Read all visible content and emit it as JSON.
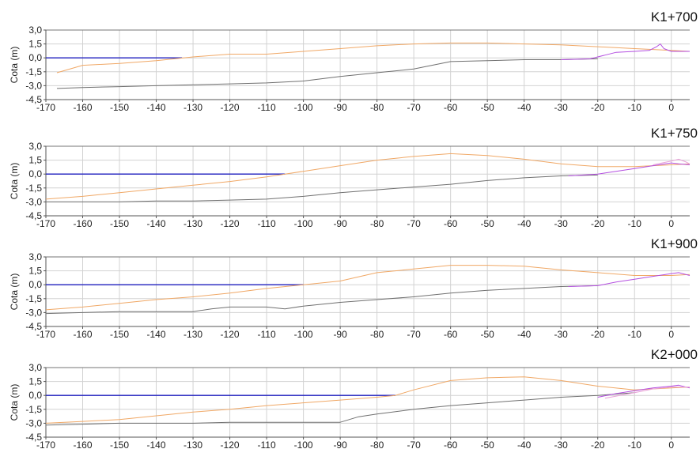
{
  "colors": {
    "grid": "#d2d2d2",
    "frame": "#555555",
    "sea_level": "#1f1fbf",
    "profile_orange": "#f0a866",
    "profile_gray": "#707070",
    "profile_purple": "#b44fe0",
    "profile_pink": "#e8a0d8"
  },
  "chart_data": [
    {
      "type": "line",
      "title": "K1+700",
      "ylabel": "Cota (m)",
      "xlim": [
        -170,
        5
      ],
      "ylim": [
        -4.5,
        3.0
      ],
      "xticks": [
        -170,
        -160,
        -150,
        -140,
        -130,
        -120,
        -110,
        -100,
        -90,
        -80,
        -70,
        -60,
        -50,
        -40,
        -30,
        -20,
        -10,
        0
      ],
      "yticks": [
        "3,0",
        "1,5",
        "0,0",
        "-1,5",
        "-3,0",
        "-4,5"
      ],
      "ytick_values": [
        3.0,
        1.5,
        0.0,
        -1.5,
        -3.0,
        -4.5
      ],
      "grid": true,
      "series": [
        {
          "color_key": "sea_level",
          "x": [
            -170,
            -133
          ],
          "y": [
            0.0,
            0.0
          ]
        },
        {
          "color_key": "profile_orange",
          "x": [
            -167,
            -160,
            -150,
            -140,
            -130,
            -120,
            -110,
            -100,
            -90,
            -80,
            -70,
            -60,
            -50,
            -40,
            -30,
            -20,
            -10,
            0,
            5
          ],
          "y": [
            -1.6,
            -0.8,
            -0.6,
            -0.3,
            0.1,
            0.4,
            0.4,
            0.7,
            1.0,
            1.3,
            1.5,
            1.6,
            1.6,
            1.5,
            1.4,
            1.2,
            1.0,
            0.8,
            0.7
          ]
        },
        {
          "color_key": "profile_gray",
          "x": [
            -167,
            -160,
            -150,
            -140,
            -130,
            -120,
            -110,
            -100,
            -90,
            -80,
            -70,
            -60,
            -50,
            -40,
            -30,
            -20
          ],
          "y": [
            -3.3,
            -3.2,
            -3.1,
            -3.0,
            -2.9,
            -2.8,
            -2.7,
            -2.5,
            -2.0,
            -1.6,
            -1.2,
            -0.4,
            -0.3,
            -0.2,
            -0.2,
            -0.1
          ]
        },
        {
          "color_key": "profile_purple",
          "x": [
            -30,
            -22,
            -20,
            -18,
            -15,
            -10,
            -6,
            -4,
            -3,
            -2,
            0,
            5
          ],
          "y": [
            -0.2,
            -0.1,
            0.1,
            0.3,
            0.6,
            0.7,
            0.8,
            1.2,
            1.5,
            1.0,
            0.7,
            0.7
          ]
        }
      ]
    },
    {
      "type": "line",
      "title": "K1+750",
      "ylabel": "Cota (m)",
      "xlim": [
        -170,
        5
      ],
      "ylim": [
        -4.5,
        3.0
      ],
      "xticks": [
        -170,
        -160,
        -150,
        -140,
        -130,
        -120,
        -110,
        -100,
        -90,
        -80,
        -70,
        -60,
        -50,
        -40,
        -30,
        -20,
        -10,
        0
      ],
      "yticks": [
        "3,0",
        "1,5",
        "0,0",
        "-1,5",
        "-3,0",
        "-4,5"
      ],
      "ytick_values": [
        3.0,
        1.5,
        0.0,
        -1.5,
        -3.0,
        -4.5
      ],
      "grid": true,
      "series": [
        {
          "color_key": "sea_level",
          "x": [
            -170,
            -105
          ],
          "y": [
            0.0,
            0.0
          ]
        },
        {
          "color_key": "profile_orange",
          "x": [
            -170,
            -160,
            -150,
            -140,
            -130,
            -120,
            -110,
            -105,
            -100,
            -90,
            -80,
            -70,
            -60,
            -50,
            -40,
            -30,
            -20,
            -10,
            0,
            5
          ],
          "y": [
            -2.7,
            -2.4,
            -2.0,
            -1.6,
            -1.2,
            -0.8,
            -0.3,
            0.0,
            0.3,
            0.9,
            1.5,
            1.9,
            2.2,
            2.0,
            1.6,
            1.1,
            0.8,
            0.8,
            1.0,
            1.1
          ]
        },
        {
          "color_key": "profile_gray",
          "x": [
            -170,
            -160,
            -150,
            -140,
            -130,
            -120,
            -110,
            -100,
            -90,
            -80,
            -70,
            -60,
            -50,
            -40,
            -30,
            -20
          ],
          "y": [
            -3.0,
            -3.0,
            -3.0,
            -2.9,
            -2.9,
            -2.8,
            -2.7,
            -2.4,
            -2.0,
            -1.7,
            -1.4,
            -1.1,
            -0.7,
            -0.4,
            -0.2,
            -0.1
          ]
        },
        {
          "color_key": "profile_purple",
          "x": [
            -28,
            -20,
            -15,
            -10,
            -5,
            0,
            2,
            5
          ],
          "y": [
            -0.2,
            0.0,
            0.3,
            0.6,
            0.9,
            1.2,
            1.1,
            1.0
          ]
        },
        {
          "color_key": "profile_pink",
          "x": [
            -5,
            0,
            2,
            4,
            5
          ],
          "y": [
            1.0,
            1.4,
            1.6,
            1.3,
            1.1
          ]
        }
      ]
    },
    {
      "type": "line",
      "title": "K1+900",
      "ylabel": "Cota (m)",
      "xlim": [
        -170,
        5
      ],
      "ylim": [
        -4.5,
        3.0
      ],
      "xticks": [
        -170,
        -160,
        -150,
        -140,
        -130,
        -120,
        -110,
        -100,
        -90,
        -80,
        -70,
        -60,
        -50,
        -40,
        -30,
        -20,
        -10,
        0
      ],
      "yticks": [
        "3,0",
        "1,5",
        "0,0",
        "-1,5",
        "-3,0",
        "-4,5"
      ],
      "ytick_values": [
        3.0,
        1.5,
        0.0,
        -1.5,
        -3.0,
        -4.5
      ],
      "grid": true,
      "series": [
        {
          "color_key": "sea_level",
          "x": [
            -170,
            -100
          ],
          "y": [
            0.0,
            0.0
          ]
        },
        {
          "color_key": "profile_orange",
          "x": [
            -170,
            -160,
            -150,
            -140,
            -130,
            -120,
            -110,
            -100,
            -90,
            -80,
            -70,
            -60,
            -50,
            -40,
            -30,
            -20,
            -10,
            0,
            5
          ],
          "y": [
            -2.7,
            -2.4,
            -2.0,
            -1.6,
            -1.3,
            -0.9,
            -0.4,
            0.0,
            0.4,
            1.3,
            1.7,
            2.1,
            2.1,
            2.0,
            1.6,
            1.3,
            1.0,
            1.0,
            1.1
          ]
        },
        {
          "color_key": "profile_gray",
          "x": [
            -170,
            -160,
            -150,
            -140,
            -130,
            -125,
            -120,
            -110,
            -105,
            -100,
            -90,
            -80,
            -70,
            -60,
            -50,
            -40,
            -30,
            -20
          ],
          "y": [
            -3.1,
            -3.0,
            -2.9,
            -2.9,
            -2.9,
            -2.6,
            -2.4,
            -2.4,
            -2.6,
            -2.3,
            -1.9,
            -1.6,
            -1.3,
            -0.9,
            -0.6,
            -0.4,
            -0.2,
            -0.1
          ]
        },
        {
          "color_key": "profile_purple",
          "x": [
            -28,
            -20,
            -15,
            -10,
            -5,
            0,
            2,
            5
          ],
          "y": [
            -0.2,
            -0.1,
            0.3,
            0.6,
            0.9,
            1.2,
            1.3,
            1.0
          ]
        }
      ]
    },
    {
      "type": "line",
      "title": "K2+000",
      "ylabel": "Cota (m)",
      "xlim": [
        -170,
        5
      ],
      "ylim": [
        -4.5,
        3.0
      ],
      "xticks": [
        -170,
        -160,
        -150,
        -140,
        -130,
        -120,
        -110,
        -100,
        -90,
        -80,
        -70,
        -60,
        -50,
        -40,
        -30,
        -20,
        -10,
        0
      ],
      "yticks": [
        "3,0",
        "1,5",
        "0,0",
        "-1,5",
        "-3,0",
        "-4,5"
      ],
      "ytick_values": [
        3.0,
        1.5,
        0.0,
        -1.5,
        -3.0,
        -4.5
      ],
      "grid": true,
      "series": [
        {
          "color_key": "sea_level",
          "x": [
            -170,
            -75
          ],
          "y": [
            0.0,
            0.0
          ]
        },
        {
          "color_key": "profile_orange",
          "x": [
            -170,
            -160,
            -150,
            -140,
            -130,
            -120,
            -110,
            -100,
            -90,
            -80,
            -75,
            -70,
            -60,
            -50,
            -40,
            -30,
            -20,
            -10,
            0,
            5
          ],
          "y": [
            -3.0,
            -2.8,
            -2.6,
            -2.2,
            -1.8,
            -1.5,
            -1.1,
            -0.8,
            -0.5,
            -0.2,
            0.0,
            0.6,
            1.6,
            1.9,
            2.0,
            1.6,
            1.0,
            0.6,
            0.8,
            0.9
          ]
        },
        {
          "color_key": "profile_gray",
          "x": [
            -170,
            -160,
            -150,
            -140,
            -130,
            -120,
            -110,
            -100,
            -90,
            -85,
            -80,
            -70,
            -60,
            -50,
            -40,
            -30,
            -20,
            -10
          ],
          "y": [
            -3.2,
            -3.1,
            -3.0,
            -3.0,
            -3.0,
            -2.9,
            -2.9,
            -2.9,
            -2.9,
            -2.3,
            -2.0,
            -1.5,
            -1.1,
            -0.8,
            -0.5,
            -0.2,
            0.0,
            0.3
          ]
        },
        {
          "color_key": "profile_purple",
          "x": [
            -20,
            -15,
            -10,
            -5,
            0,
            2,
            5
          ],
          "y": [
            -0.2,
            0.2,
            0.5,
            0.8,
            1.0,
            1.1,
            0.8
          ]
        },
        {
          "color_key": "profile_pink",
          "x": [
            -18,
            -10,
            -5,
            0,
            5
          ],
          "y": [
            -0.3,
            0.3,
            0.7,
            0.9,
            0.9
          ]
        }
      ]
    }
  ]
}
